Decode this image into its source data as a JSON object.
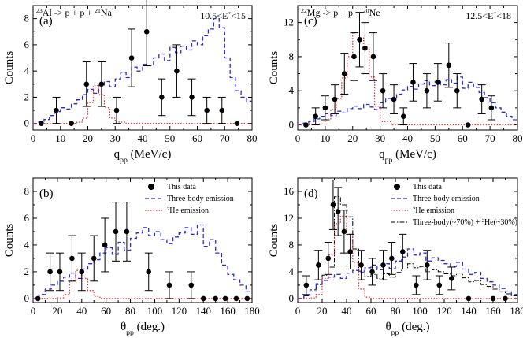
{
  "chart_data": [
    {
      "type": "scatter",
      "panel_label": "(a)",
      "reaction": {
        "a": "23",
        "b": "Al -> p + p + ",
        "c": "21",
        "d": "Na"
      },
      "energy": {
        "a": "10.5<E",
        "b": "*",
        "c": "<15"
      },
      "xlabel": {
        "main": "q",
        "sub": "pp",
        "unit": " (MeV/c)"
      },
      "ylabel": "Counts",
      "xlim": [
        0,
        80
      ],
      "ylim": [
        -0.5,
        9
      ],
      "xticks": [
        0,
        10,
        20,
        30,
        40,
        50,
        60,
        70,
        80
      ],
      "yticks": [
        0,
        2,
        4,
        6,
        8
      ],
      "data_points": [
        {
          "x": 3,
          "y": 0,
          "err": 0
        },
        {
          "x": 8.5,
          "y": 1,
          "err": 1
        },
        {
          "x": 14,
          "y": 0,
          "err": 0
        },
        {
          "x": 19.5,
          "y": 3,
          "err": 1.7
        },
        {
          "x": 25,
          "y": 3,
          "err": 1.7
        },
        {
          "x": 30.5,
          "y": 1,
          "err": 1
        },
        {
          "x": 36,
          "y": 5,
          "err": 2.2
        },
        {
          "x": 41.5,
          "y": 7,
          "err": 2.6
        },
        {
          "x": 47,
          "y": 2,
          "err": 1.4
        },
        {
          "x": 52.5,
          "y": 4,
          "err": 2
        },
        {
          "x": 58,
          "y": 2,
          "err": 1.4
        },
        {
          "x": 63.5,
          "y": 1,
          "err": 1
        },
        {
          "x": 69,
          "y": 1,
          "err": 1
        },
        {
          "x": 74.5,
          "y": 0,
          "err": 0
        }
      ],
      "three_body": {
        "x": [
          0,
          2,
          4,
          6,
          8,
          10,
          12,
          14,
          16,
          18,
          20,
          22,
          24,
          26,
          28,
          30,
          32,
          34,
          36,
          38,
          40,
          42,
          44,
          46,
          48,
          50,
          52,
          54,
          56,
          58,
          60,
          62,
          64,
          66,
          68,
          70,
          72,
          74,
          76,
          78
        ],
        "y": [
          0,
          0.1,
          0.3,
          0.6,
          0.9,
          1.2,
          1.1,
          1.5,
          1.8,
          2.2,
          2.6,
          2.3,
          2.9,
          3.2,
          2.8,
          3.4,
          3.9,
          3.5,
          4.3,
          4.0,
          4.5,
          4.4,
          5.0,
          5.3,
          4.8,
          5.8,
          5.4,
          5.9,
          5.6,
          6.3,
          6.0,
          6.7,
          7.2,
          8.0,
          7.3,
          5.0,
          3.5,
          2.5,
          2.0,
          1.7
        ]
      },
      "he2_emission": {
        "x": [
          0,
          4,
          8,
          12,
          16,
          18,
          20,
          22,
          24,
          26,
          28,
          30,
          34,
          40,
          50,
          60,
          70,
          80
        ],
        "y": [
          0,
          0,
          0,
          0,
          0.1,
          0.4,
          1.6,
          2.9,
          2.2,
          1.2,
          0.4,
          0.1,
          0,
          0,
          0,
          0,
          0,
          0
        ]
      }
    },
    {
      "type": "scatter",
      "panel_label": "(c)",
      "reaction": {
        "a": "22",
        "b": "Mg -> p + p + ",
        "c": "20",
        "d": "Ne"
      },
      "energy": {
        "a": "12.5<E",
        "b": "*",
        "c": "<18"
      },
      "xlabel": {
        "main": "q",
        "sub": "pp",
        "unit": " (MeV/c)"
      },
      "ylabel": "Counts",
      "xlim": [
        0,
        80
      ],
      "ylim": [
        -0.6,
        14
      ],
      "xticks": [
        0,
        10,
        20,
        30,
        40,
        50,
        60,
        70,
        80
      ],
      "yticks": [
        0,
        4,
        8,
        12
      ],
      "data_points": [
        {
          "x": 3,
          "y": 0,
          "err": 0
        },
        {
          "x": 6.5,
          "y": 1,
          "err": 1
        },
        {
          "x": 10,
          "y": 2,
          "err": 1.4
        },
        {
          "x": 13.5,
          "y": 3,
          "err": 1.7
        },
        {
          "x": 17,
          "y": 6,
          "err": 2.4
        },
        {
          "x": 20.5,
          "y": 8,
          "err": 2.8
        },
        {
          "x": 22.5,
          "y": 10,
          "err": 3.2
        },
        {
          "x": 24.5,
          "y": 9,
          "err": 3
        },
        {
          "x": 27.5,
          "y": 8,
          "err": 2.8
        },
        {
          "x": 31,
          "y": 4,
          "err": 2
        },
        {
          "x": 35,
          "y": 3,
          "err": 1.7
        },
        {
          "x": 38.5,
          "y": 1,
          "err": 1
        },
        {
          "x": 42,
          "y": 5,
          "err": 2.2
        },
        {
          "x": 47,
          "y": 4,
          "err": 2
        },
        {
          "x": 51,
          "y": 5,
          "err": 2.2
        },
        {
          "x": 55,
          "y": 7,
          "err": 2.6
        },
        {
          "x": 58,
          "y": 4,
          "err": 2
        },
        {
          "x": 62,
          "y": 0,
          "err": 0
        },
        {
          "x": 67,
          "y": 3,
          "err": 1.7
        },
        {
          "x": 70.5,
          "y": 2,
          "err": 1.4
        }
      ],
      "three_body": {
        "x": [
          0,
          2,
          4,
          6,
          8,
          10,
          12,
          14,
          16,
          18,
          20,
          22,
          24,
          26,
          28,
          30,
          32,
          34,
          36,
          38,
          40,
          42,
          44,
          46,
          48,
          50,
          52,
          54,
          56,
          58,
          60,
          62,
          64,
          66,
          68,
          70,
          72,
          74,
          76,
          78
        ],
        "y": [
          0,
          0.2,
          0.4,
          0.7,
          1.0,
          1.3,
          1.1,
          1.6,
          1.4,
          1.9,
          2.2,
          1.9,
          2.4,
          2.1,
          1.8,
          2.6,
          3.1,
          2.9,
          3.6,
          4.1,
          4.5,
          4.2,
          4.8,
          5.2,
          4.6,
          5.1,
          4.7,
          5.3,
          4.9,
          5.6,
          4.3,
          5.0,
          4.4,
          3.8,
          3.2,
          2.6,
          2.0,
          1.5,
          1.0,
          0.6
        ]
      },
      "he2_emission": {
        "x": [
          0,
          4,
          8,
          10,
          12,
          14,
          16,
          18,
          20,
          22,
          24,
          26,
          28,
          30,
          34,
          40,
          50,
          60,
          70,
          80
        ],
        "y": [
          0,
          0,
          0.1,
          0.6,
          1.8,
          3.1,
          5.5,
          8.0,
          10.8,
          10.2,
          8.9,
          5.6,
          2.2,
          0.4,
          0,
          0,
          0,
          0,
          0,
          0
        ]
      }
    },
    {
      "type": "scatter",
      "panel_label": "(b)",
      "xlabel": {
        "main": "θ",
        "sub": "pp",
        "unit": " (deg.)"
      },
      "ylabel": "Counts",
      "xlim": [
        0,
        180
      ],
      "ylim": [
        -0.3,
        9
      ],
      "xticks": [
        0,
        20,
        40,
        60,
        80,
        100,
        120,
        140,
        160,
        180
      ],
      "yticks": [
        0,
        2,
        4,
        6,
        8
      ],
      "legend": [
        "This data",
        "Three-body emission",
        "He emission"
      ],
      "legend_sup": "2",
      "data_points": [
        {
          "x": 4,
          "y": 0,
          "err": 0
        },
        {
          "x": 14,
          "y": 2,
          "err": 1.4
        },
        {
          "x": 22,
          "y": 2,
          "err": 1.4
        },
        {
          "x": 32,
          "y": 3,
          "err": 1.7
        },
        {
          "x": 40,
          "y": 2,
          "err": 1.4
        },
        {
          "x": 50,
          "y": 3,
          "err": 1.7
        },
        {
          "x": 59,
          "y": 4,
          "err": 2
        },
        {
          "x": 68,
          "y": 5,
          "err": 2.2
        },
        {
          "x": 77,
          "y": 5,
          "err": 2.2
        },
        {
          "x": 95,
          "y": 2,
          "err": 1.4
        },
        {
          "x": 112,
          "y": 1,
          "err": 1
        },
        {
          "x": 130,
          "y": 1,
          "err": 1
        },
        {
          "x": 140,
          "y": 0,
          "err": 0
        },
        {
          "x": 150,
          "y": 0,
          "err": 0
        },
        {
          "x": 158,
          "y": 0,
          "err": 0
        },
        {
          "x": 167,
          "y": 0,
          "err": 0
        },
        {
          "x": 176,
          "y": 0,
          "err": 0
        }
      ],
      "three_body": {
        "x": [
          0,
          5,
          10,
          15,
          20,
          25,
          30,
          35,
          40,
          45,
          50,
          55,
          60,
          65,
          70,
          75,
          80,
          85,
          90,
          95,
          100,
          105,
          110,
          115,
          120,
          125,
          130,
          135,
          140,
          145,
          150,
          155,
          160,
          165,
          170,
          175
        ],
        "y": [
          0,
          0.3,
          0.7,
          1.0,
          1.3,
          1.6,
          1.9,
          1.5,
          2.2,
          2.6,
          2.9,
          3.4,
          3.8,
          3.3,
          4.2,
          3.6,
          4.5,
          4.9,
          5.3,
          4.7,
          5.0,
          4.4,
          4.1,
          4.6,
          4.9,
          5.3,
          4.8,
          5.5,
          3.9,
          4.4,
          3.4,
          2.5,
          1.8,
          1.4,
          1.0,
          0.5
        ]
      },
      "he2_emission": {
        "x": [
          0,
          10,
          20,
          25,
          30,
          35,
          40,
          45,
          50,
          55,
          60,
          70,
          80,
          180
        ],
        "y": [
          0,
          0,
          0.05,
          0.3,
          1.3,
          2.1,
          1.5,
          0.6,
          0.15,
          0,
          0,
          0,
          0,
          0
        ]
      }
    },
    {
      "type": "scatter",
      "panel_label": "(d)",
      "xlabel": {
        "main": "θ",
        "sub": "pp",
        "unit": " (deg.)"
      },
      "ylabel": "Counts",
      "xlim": [
        0,
        180
      ],
      "ylim": [
        -0.6,
        18
      ],
      "xticks": [
        0,
        20,
        40,
        60,
        80,
        100,
        120,
        140,
        160,
        180
      ],
      "yticks": [
        0,
        4,
        8,
        12,
        16
      ],
      "legend": [
        "This data",
        "Three-body emission",
        "He emission",
        "Three-body(~70%) + He(~30%)"
      ],
      "legend_sup": "2",
      "legend_sup2": "2",
      "data_points": [
        {
          "x": 7,
          "y": 2,
          "err": 1.4
        },
        {
          "x": 17,
          "y": 5,
          "err": 2.2
        },
        {
          "x": 25,
          "y": 6,
          "err": 2.4
        },
        {
          "x": 29,
          "y": 14,
          "err": 3.7
        },
        {
          "x": 33,
          "y": 13,
          "err": 3.6
        },
        {
          "x": 38,
          "y": 10,
          "err": 3.2
        },
        {
          "x": 43,
          "y": 7,
          "err": 2.6
        },
        {
          "x": 52,
          "y": 5,
          "err": 2.2
        },
        {
          "x": 61,
          "y": 4,
          "err": 2
        },
        {
          "x": 70,
          "y": 5,
          "err": 2.2
        },
        {
          "x": 77,
          "y": 6,
          "err": 2.4
        },
        {
          "x": 86,
          "y": 7,
          "err": 2.6
        },
        {
          "x": 97,
          "y": 2,
          "err": 1.4
        },
        {
          "x": 106,
          "y": 5,
          "err": 2.2
        },
        {
          "x": 116,
          "y": 2,
          "err": 1.4
        },
        {
          "x": 126,
          "y": 3,
          "err": 1.7
        },
        {
          "x": 140,
          "y": 0,
          "err": 0
        },
        {
          "x": 160,
          "y": 0,
          "err": 0
        },
        {
          "x": 170,
          "y": 0,
          "err": 0
        }
      ],
      "three_body": {
        "x": [
          0,
          5,
          10,
          15,
          20,
          25,
          30,
          35,
          40,
          45,
          50,
          55,
          60,
          65,
          70,
          75,
          80,
          85,
          90,
          95,
          100,
          105,
          110,
          115,
          120,
          125,
          130,
          135,
          140,
          145,
          150,
          155,
          160,
          165,
          170,
          175
        ],
        "y": [
          0,
          0.5,
          1.3,
          2.2,
          2.7,
          3.2,
          3.6,
          3.0,
          3.8,
          4.2,
          3.9,
          4.6,
          5.0,
          4.3,
          5.2,
          4.5,
          5.6,
          6.2,
          7.4,
          6.5,
          6.8,
          5.6,
          6.1,
          5.7,
          5.2,
          4.8,
          5.4,
          4.4,
          3.6,
          3.9,
          3.0,
          2.5,
          2.0,
          1.5,
          1.0,
          0.6
        ]
      },
      "he2_emission": {
        "x": [
          0,
          10,
          15,
          20,
          25,
          30,
          35,
          40,
          45,
          50,
          55,
          60,
          70,
          180
        ],
        "y": [
          0,
          0.1,
          0.6,
          3.0,
          6.5,
          11.2,
          12.3,
          9.6,
          5.4,
          1.4,
          0.2,
          0,
          0,
          0
        ]
      },
      "combined": {
        "x": [
          0,
          5,
          10,
          15,
          20,
          25,
          30,
          35,
          40,
          45,
          50,
          55,
          60,
          65,
          70,
          75,
          80,
          85,
          90,
          95,
          100,
          105,
          110,
          115,
          120,
          125,
          130,
          135,
          140,
          145,
          150,
          155,
          160,
          165,
          170,
          175
        ],
        "y": [
          0,
          0.4,
          1.0,
          2.1,
          3.5,
          4.7,
          15.2,
          14.0,
          12.2,
          7.4,
          4.1,
          3.3,
          3.6,
          3.0,
          3.7,
          3.2,
          3.9,
          4.4,
          5.2,
          4.6,
          4.8,
          4.0,
          4.3,
          4.0,
          3.7,
          3.4,
          3.8,
          3.1,
          2.5,
          2.7,
          2.1,
          1.8,
          1.4,
          1.0,
          0.7,
          0.4
        ]
      }
    }
  ],
  "colors": {
    "three_body": "#2b2bd6",
    "he2": "#e03030",
    "combined": "#000000",
    "axis": "#000000"
  }
}
